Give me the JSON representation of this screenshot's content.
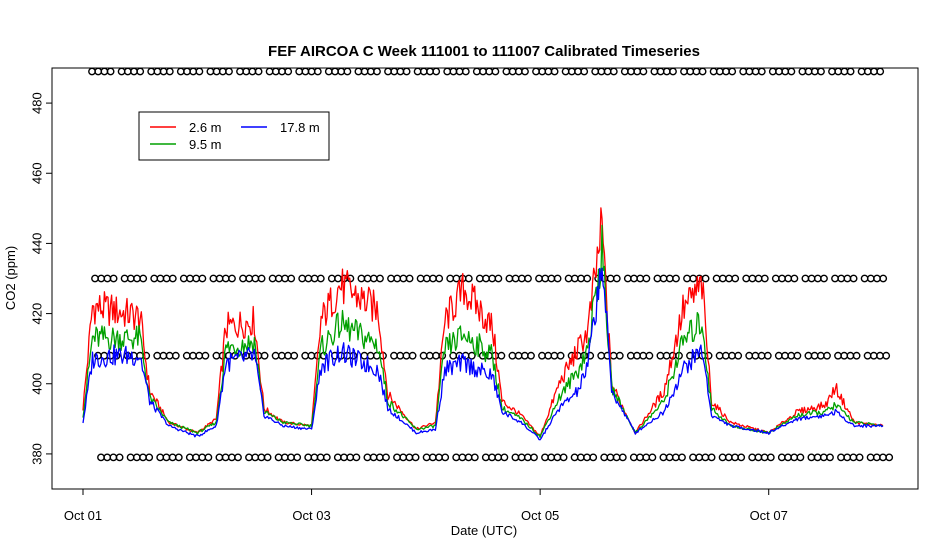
{
  "chart_data": {
    "type": "line",
    "title": "FEF AIRCOA C  Week 111001 to 111007  Calibrated Timeseries",
    "xlabel": "Date (UTC)",
    "ylabel": "CO2 (ppm)",
    "xlim": [
      "2011-10-01T00:00",
      "2011-10-08T00:00"
    ],
    "ylim": [
      370,
      490
    ],
    "yticks": [
      380,
      400,
      420,
      440,
      460,
      480
    ],
    "xticks": [
      {
        "label": "Oct 01",
        "at": "2011-10-01T00:00"
      },
      {
        "label": "Oct 03",
        "at": "2011-10-03T00:00"
      },
      {
        "label": "Oct 05",
        "at": "2011-10-05T00:00"
      },
      {
        "label": "Oct 07",
        "at": "2011-10-07T00:00"
      }
    ],
    "grid": false,
    "legend_position": "top-left",
    "series": [
      {
        "name": "2.6 m",
        "color": "#ff0000",
        "points": [
          [
            "2011-10-01T00:00",
            393
          ],
          [
            "2011-10-01T02:00",
            422
          ],
          [
            "2011-10-01T06:00",
            421
          ],
          [
            "2011-10-01T12:00",
            419
          ],
          [
            "2011-10-01T14:00",
            398
          ],
          [
            "2011-10-01T18:00",
            389
          ],
          [
            "2011-10-02T00:00",
            386
          ],
          [
            "2011-10-02T04:00",
            390
          ],
          [
            "2011-10-02T06:00",
            416
          ],
          [
            "2011-10-02T12:00",
            418
          ],
          [
            "2011-10-02T14:00",
            393
          ],
          [
            "2011-10-02T18:00",
            389
          ],
          [
            "2011-10-03T00:00",
            388
          ],
          [
            "2011-10-03T02:00",
            418
          ],
          [
            "2011-10-03T06:00",
            428
          ],
          [
            "2011-10-03T14:00",
            421
          ],
          [
            "2011-10-03T16:00",
            397
          ],
          [
            "2011-10-03T22:00",
            387
          ],
          [
            "2011-10-04T02:00",
            389
          ],
          [
            "2011-10-04T04:00",
            418
          ],
          [
            "2011-10-04T08:00",
            427
          ],
          [
            "2011-10-04T14:00",
            416
          ],
          [
            "2011-10-04T16:00",
            395
          ],
          [
            "2011-10-04T20:00",
            391
          ],
          [
            "2011-10-05T00:00",
            385
          ],
          [
            "2011-10-05T04:00",
            400
          ],
          [
            "2011-10-05T08:00",
            410
          ],
          [
            "2011-10-05T10:00",
            415
          ],
          [
            "2011-10-05T13:00",
            445
          ],
          [
            "2011-10-05T15:00",
            400
          ],
          [
            "2011-10-05T20:00",
            386
          ],
          [
            "2011-10-06T02:00",
            398
          ],
          [
            "2011-10-06T06:00",
            421
          ],
          [
            "2011-10-06T10:00",
            428
          ],
          [
            "2011-10-06T12:00",
            395
          ],
          [
            "2011-10-06T16:00",
            389
          ],
          [
            "2011-10-07T00:00",
            386
          ],
          [
            "2011-10-07T06:00",
            392
          ],
          [
            "2011-10-07T12:00",
            394
          ],
          [
            "2011-10-07T14:00",
            399
          ],
          [
            "2011-10-07T18:00",
            389
          ],
          [
            "2011-10-08T00:00",
            388
          ]
        ]
      },
      {
        "name": "9.5 m",
        "color": "#00a000",
        "points": [
          [
            "2011-10-01T00:00",
            391
          ],
          [
            "2011-10-01T02:00",
            413
          ],
          [
            "2011-10-01T06:00",
            413
          ],
          [
            "2011-10-01T12:00",
            413
          ],
          [
            "2011-10-01T14:00",
            396
          ],
          [
            "2011-10-01T18:00",
            389
          ],
          [
            "2011-10-02T00:00",
            386
          ],
          [
            "2011-10-02T04:00",
            389
          ],
          [
            "2011-10-02T06:00",
            410
          ],
          [
            "2011-10-02T12:00",
            412
          ],
          [
            "2011-10-02T14:00",
            392
          ],
          [
            "2011-10-02T18:00",
            389
          ],
          [
            "2011-10-03T00:00",
            388
          ],
          [
            "2011-10-03T02:00",
            410
          ],
          [
            "2011-10-03T06:00",
            417
          ],
          [
            "2011-10-03T14:00",
            411
          ],
          [
            "2011-10-03T16:00",
            395
          ],
          [
            "2011-10-03T22:00",
            387
          ],
          [
            "2011-10-04T02:00",
            388
          ],
          [
            "2011-10-04T04:00",
            410
          ],
          [
            "2011-10-04T08:00",
            414
          ],
          [
            "2011-10-04T14:00",
            408
          ],
          [
            "2011-10-04T16:00",
            393
          ],
          [
            "2011-10-04T20:00",
            390
          ],
          [
            "2011-10-05T00:00",
            385
          ],
          [
            "2011-10-05T04:00",
            396
          ],
          [
            "2011-10-05T08:00",
            404
          ],
          [
            "2011-10-05T10:00",
            410
          ],
          [
            "2011-10-05T13:00",
            438
          ],
          [
            "2011-10-05T15:00",
            399
          ],
          [
            "2011-10-05T20:00",
            386
          ],
          [
            "2011-10-06T02:00",
            395
          ],
          [
            "2011-10-06T06:00",
            412
          ],
          [
            "2011-10-06T10:00",
            418
          ],
          [
            "2011-10-06T12:00",
            393
          ],
          [
            "2011-10-06T16:00",
            388
          ],
          [
            "2011-10-07T00:00",
            386
          ],
          [
            "2011-10-07T06:00",
            391
          ],
          [
            "2011-10-07T12:00",
            392
          ],
          [
            "2011-10-07T14:00",
            394
          ],
          [
            "2011-10-07T18:00",
            389
          ],
          [
            "2011-10-08T00:00",
            388
          ]
        ]
      },
      {
        "name": "17.8 m",
        "color": "#0000ff",
        "points": [
          [
            "2011-10-01T00:00",
            389
          ],
          [
            "2011-10-01T02:00",
            407
          ],
          [
            "2011-10-01T06:00",
            408
          ],
          [
            "2011-10-01T12:00",
            408
          ],
          [
            "2011-10-01T14:00",
            395
          ],
          [
            "2011-10-01T18:00",
            388
          ],
          [
            "2011-10-02T00:00",
            385
          ],
          [
            "2011-10-02T04:00",
            388
          ],
          [
            "2011-10-02T06:00",
            406
          ],
          [
            "2011-10-02T12:00",
            408
          ],
          [
            "2011-10-02T14:00",
            391
          ],
          [
            "2011-10-02T18:00",
            388
          ],
          [
            "2011-10-03T00:00",
            387
          ],
          [
            "2011-10-03T02:00",
            405
          ],
          [
            "2011-10-03T06:00",
            409
          ],
          [
            "2011-10-03T14:00",
            404
          ],
          [
            "2011-10-03T16:00",
            393
          ],
          [
            "2011-10-03T22:00",
            386
          ],
          [
            "2011-10-04T02:00",
            387
          ],
          [
            "2011-10-04T04:00",
            404
          ],
          [
            "2011-10-04T08:00",
            406
          ],
          [
            "2011-10-04T14:00",
            402
          ],
          [
            "2011-10-04T16:00",
            392
          ],
          [
            "2011-10-04T20:00",
            389
          ],
          [
            "2011-10-05T00:00",
            384
          ],
          [
            "2011-10-05T04:00",
            393
          ],
          [
            "2011-10-05T08:00",
            398
          ],
          [
            "2011-10-05T10:00",
            405
          ],
          [
            "2011-10-05T13:00",
            435
          ],
          [
            "2011-10-05T15:00",
            398
          ],
          [
            "2011-10-05T20:00",
            386
          ],
          [
            "2011-10-06T02:00",
            392
          ],
          [
            "2011-10-06T06:00",
            404
          ],
          [
            "2011-10-06T10:00",
            410
          ],
          [
            "2011-10-06T12:00",
            391
          ],
          [
            "2011-10-06T16:00",
            388
          ],
          [
            "2011-10-07T00:00",
            386
          ],
          [
            "2011-10-07T06:00",
            390
          ],
          [
            "2011-10-07T12:00",
            391
          ],
          [
            "2011-10-07T14:00",
            392
          ],
          [
            "2011-10-07T18:00",
            388
          ],
          [
            "2011-10-08T00:00",
            388
          ]
        ]
      }
    ],
    "flag_marker_rows": [
      {
        "y": 489,
        "marker": "o"
      },
      {
        "y": 430,
        "marker": "o"
      },
      {
        "y": 408,
        "marker": "o"
      },
      {
        "y": 379,
        "marker": "o"
      }
    ]
  }
}
